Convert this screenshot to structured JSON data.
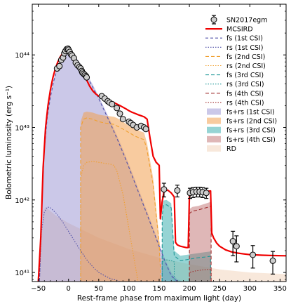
{
  "chart_data": {
    "type": "line",
    "xlabel": "Rest-frame phase from maximum light (day)",
    "ylabel": "Bolometric luminosity (erg s⁻¹)",
    "xlim": [
      -60,
      360
    ],
    "ylim": [
      7.5e+40,
      5e+44
    ],
    "yscale": "log",
    "x_ticks": [
      -50,
      0,
      50,
      100,
      150,
      200,
      250,
      300,
      350
    ],
    "y_ticks": [
      {
        "value": 1e+41,
        "label": "10⁴¹"
      },
      {
        "value": 1e+42,
        "label": "10⁴²"
      },
      {
        "value": 1e+43,
        "label": "10⁴³"
      },
      {
        "value": 1e+44,
        "label": "10⁴⁴"
      }
    ],
    "legend_position": "right",
    "series": [
      {
        "name": "RD",
        "kind": "fill",
        "color": "#f5dcc8",
        "opacity": 0.65,
        "x": [
          -48,
          -45,
          -42,
          -38,
          -30,
          -20,
          0,
          50,
          100,
          150,
          200,
          250,
          300,
          360
        ],
        "y": [
          7.5e+40,
          3.5e+41,
          7e+41,
          8e+41,
          7e+41,
          6e+41,
          4.8e+41,
          3e+41,
          2.1e+41,
          1.6e+41,
          1.3e+41,
          1.1e+41,
          1e+41,
          9.5e+40
        ]
      },
      {
        "name": "fs+rs (1st CSI)",
        "kind": "fill",
        "color": "#8c84cc",
        "opacity": 0.45,
        "x": [
          -48,
          -44,
          -40,
          -35,
          -30,
          -25,
          -20,
          -15,
          -10,
          -5,
          0,
          5,
          10,
          20,
          30,
          40,
          50,
          60,
          70,
          80,
          90,
          100,
          110,
          120,
          130,
          140,
          150,
          160,
          170,
          180,
          190
        ],
        "y": [
          7.5e+40,
          1e+42,
          5.5e+42,
          1.5e+43,
          2.8e+43,
          4.5e+43,
          6.3e+43,
          8e+43,
          9.6e+43,
          1.08e+44,
          1.12e+44,
          1.08e+44,
          9.8e+43,
          7.5e+43,
          5.5e+43,
          3.9e+43,
          2.7e+43,
          1.8e+43,
          1.2e+43,
          7.8e+42,
          5e+42,
          3.1e+42,
          1.9e+42,
          1.15e+42,
          7e+41,
          4.2e+41,
          2.5e+41,
          1.5e+41,
          1e+41,
          8e+40,
          7.5e+40
        ]
      },
      {
        "name": "fs+rs (2nd CSI)",
        "kind": "fill",
        "color": "#f2a050",
        "opacity": 0.55,
        "x": [
          20,
          20,
          25,
          30,
          40,
          50,
          60,
          70,
          75,
          80,
          90,
          100,
          110,
          120,
          125,
          130,
          140,
          150,
          153
        ],
        "y": [
          7.5e+40,
          1.2e+43,
          1.6e+43,
          1.65e+43,
          1.6e+43,
          1.5e+43,
          1.45e+43,
          1.42e+43,
          1.4e+43,
          1.35e+43,
          1.2e+43,
          1.05e+43,
          9.5e+42,
          8.8e+42,
          8.5e+42,
          6e+42,
          2e+42,
          3e+41,
          7.5e+40
        ]
      },
      {
        "name": "fs+rs (3rd CSI)",
        "kind": "fill",
        "color": "#40b0b0",
        "opacity": 0.55,
        "x": [
          155,
          155,
          157,
          162,
          170,
          175,
          185,
          195,
          205,
          215,
          225,
          230,
          235,
          235
        ],
        "y": [
          7.5e+40,
          7e+41,
          9.8e+41,
          1e+42,
          9e+41,
          2e+41,
          1.7e+41,
          1.75e+41,
          1.8e+41,
          1.85e+41,
          1.9e+41,
          1.92e+41,
          1.95e+41,
          7.5e+40
        ]
      },
      {
        "name": "fs+rs (4th CSI)",
        "kind": "fill",
        "color": "#b86060",
        "opacity": 0.45,
        "x": [
          200,
          200,
          205,
          215,
          225,
          232,
          235,
          236,
          236
        ],
        "y": [
          7.5e+40,
          7.5e+41,
          8e+41,
          8.3e+41,
          8.8e+41,
          9.2e+41,
          9.4e+41,
          8e+41,
          7.5e+40
        ]
      },
      {
        "name": "fs (1st CSI)",
        "kind": "line",
        "color": "#5050a8",
        "dash": "4,3",
        "x": [
          -48,
          -44,
          -40,
          -35,
          -30,
          -25,
          -20,
          -15,
          -10,
          -5,
          0,
          5,
          10,
          20,
          30,
          40,
          50,
          60,
          70,
          80,
          90,
          100,
          110,
          120,
          130,
          140,
          150,
          160,
          170,
          180
        ],
        "y": [
          7.5e+40,
          9.5e+41,
          5e+42,
          1.4e+43,
          2.6e+43,
          4.2e+43,
          5.9e+43,
          7.6e+43,
          9.1e+43,
          1.02e+44,
          1.06e+44,
          1.02e+44,
          9.2e+43,
          7e+43,
          5.1e+43,
          3.6e+43,
          2.5e+43,
          1.65e+43,
          1.1e+43,
          7.1e+42,
          4.5e+42,
          2.8e+42,
          1.7e+42,
          1.04e+42,
          6.3e+41,
          3.8e+41,
          2.3e+41,
          1.4e+41,
          9e+40,
          7.5e+40
        ]
      },
      {
        "name": "rs (1st CSI)",
        "kind": "line",
        "color": "#5050a8",
        "dash": "1.5,2",
        "x": [
          -48,
          -45,
          -40,
          -35,
          -30,
          -20,
          -10,
          0,
          10,
          20,
          30,
          40,
          50,
          60,
          70,
          80,
          85
        ],
        "y": [
          7.5e+40,
          3.5e+41,
          6.8e+41,
          8e+41,
          7.8e+41,
          6.5e+41,
          5e+41,
          3.7e+41,
          2.7e+41,
          2e+41,
          1.5e+41,
          1.2e+41,
          1e+41,
          9e+40,
          8.2e+40,
          7.8e+40,
          7.5e+40
        ]
      },
      {
        "name": "fs (2nd CSI)",
        "kind": "line",
        "color": "#f0a030",
        "dash": "5,3",
        "x": [
          20,
          20,
          25,
          30,
          40,
          50,
          60,
          70,
          75,
          80,
          90,
          100,
          110,
          120,
          125,
          130,
          140,
          150,
          153
        ],
        "y": [
          7.5e+40,
          1e+43,
          1.3e+43,
          1.35e+43,
          1.3e+43,
          1.2e+43,
          1.15e+43,
          1.12e+43,
          1.1e+43,
          1.05e+43,
          9.5e+42,
          8.5e+42,
          7.6e+42,
          7e+42,
          6.8e+42,
          4.8e+42,
          1.6e+42,
          2.5e+41,
          7.5e+40
        ]
      },
      {
        "name": "rs (2nd CSI)",
        "kind": "line",
        "color": "#f0a030",
        "dash": "1.5,2",
        "x": [
          20,
          20,
          25,
          30,
          40,
          50,
          60,
          70,
          75,
          80,
          90,
          100,
          110,
          115
        ],
        "y": [
          7.5e+40,
          2e+42,
          3e+42,
          3.3e+42,
          3.4e+42,
          3.3e+42,
          3.2e+42,
          3.1e+42,
          3e+42,
          2.5e+42,
          1.2e+42,
          4e+41,
          1.3e+41,
          7.5e+40
        ]
      },
      {
        "name": "fs (3rd CSI)",
        "kind": "line",
        "color": "#209898",
        "dash": "5,3",
        "x": [
          155,
          155,
          157,
          162,
          170,
          175,
          185,
          195,
          205,
          215,
          225,
          230,
          235,
          235
        ],
        "y": [
          7.5e+40,
          6e+41,
          8.4e+41,
          8.6e+41,
          7.8e+41,
          1.7e+41,
          1.45e+41,
          1.5e+41,
          1.55e+41,
          1.6e+41,
          1.63e+41,
          1.65e+41,
          1.67e+41,
          7.5e+40
        ]
      },
      {
        "name": "rs (3rd CSI)",
        "kind": "line",
        "color": "#209898",
        "dash": "1.5,2",
        "x": [
          155,
          155,
          160,
          170,
          175,
          175
        ],
        "y": [
          7.5e+40,
          1.4e+41,
          1.5e+41,
          1.45e+41,
          1.4e+41,
          7.5e+40
        ]
      },
      {
        "name": "fs (4th CSI)",
        "kind": "line",
        "color": "#a03030",
        "dash": "5,3",
        "x": [
          200,
          200,
          205,
          215,
          225,
          232,
          235,
          236,
          236
        ],
        "y": [
          7.5e+40,
          6.5e+41,
          7e+41,
          7.3e+41,
          7.7e+41,
          8e+41,
          8.2e+41,
          7e+41,
          7.5e+40
        ]
      },
      {
        "name": "rs (4th CSI)",
        "kind": "line",
        "color": "#a03030",
        "dash": "1.5,2",
        "x": [
          200,
          200,
          210,
          220,
          230,
          236,
          236
        ],
        "y": [
          7.5e+40,
          1e+41,
          1.05e+41,
          1.08e+41,
          1.1e+41,
          1.1e+41,
          7.5e+40
        ]
      },
      {
        "name": "MCSIRD",
        "kind": "line",
        "color": "#f00000",
        "width": 2.2,
        "x": [
          -50,
          -46,
          -42,
          -38,
          -34,
          -30,
          -26,
          -22,
          -18,
          -14,
          -10,
          -6,
          -3,
          0,
          3,
          6,
          10,
          15,
          20,
          25,
          30,
          35,
          40,
          45,
          50,
          55,
          60,
          65,
          70,
          75,
          80,
          85,
          90,
          95,
          100,
          105,
          110,
          115,
          120,
          125,
          130,
          135,
          140,
          145,
          150,
          152,
          155,
          158,
          160,
          165,
          170,
          175,
          177,
          180,
          185,
          190,
          195,
          198,
          200,
          203,
          210,
          220,
          230,
          235,
          237,
          240,
          245,
          250,
          260,
          270,
          280,
          290,
          300,
          320,
          340,
          360
        ],
        "y": [
          7.5e+40,
          3e+41,
          2.8e+42,
          1e+43,
          2e+43,
          3.3e+43,
          4.8e+43,
          6.4e+43,
          7.9e+43,
          9.3e+43,
          1.04e+44,
          1.12e+44,
          1.14e+44,
          1.12e+44,
          1.06e+44,
          9.8e+43,
          8.6e+43,
          7.2e+43,
          6.3e+43,
          5.4e+43,
          4.5e+43,
          3.7e+43,
          3.2e+43,
          2.9e+43,
          2.7e+43,
          2.6e+43,
          2.5e+43,
          2.4e+43,
          2.3e+43,
          2.2e+43,
          2.1e+43,
          2e+43,
          1.9e+43,
          1.8e+43,
          1.7e+43,
          1.62e+43,
          1.56e+43,
          1.5e+43,
          1.45e+43,
          1.4e+43,
          1.3e+43,
          7e+42,
          4e+42,
          3.3e+42,
          3e+42,
          5.5e+41,
          9.5e+41,
          1.3e+42,
          1.4e+42,
          1.35e+42,
          1.25e+42,
          1.1e+42,
          2.6e+41,
          2.4e+41,
          2.3e+41,
          2.25e+41,
          2.2e+41,
          2.2e+41,
          1.1e+42,
          1.25e+42,
          1.28e+42,
          1.3e+42,
          1.32e+42,
          1.33e+42,
          3.5e+41,
          3e+41,
          2.55e+41,
          2.3e+41,
          2.05e+41,
          1.92e+41,
          1.85e+41,
          1.8e+41,
          1.76e+41,
          1.73e+41,
          1.71e+41,
          1.7e+41
        ]
      },
      {
        "name": "SN2017egm",
        "kind": "points",
        "color": "#cccccc",
        "x": [
          -19,
          -15,
          -12,
          -9,
          -7,
          -5,
          -3,
          -1,
          0,
          2,
          4,
          6,
          9,
          12,
          15,
          18,
          20,
          22,
          23,
          25,
          27,
          29,
          30,
          55,
          60,
          65,
          68,
          72,
          80,
          85,
          90,
          100,
          103,
          107,
          113,
          120,
          125,
          128,
          158,
          180,
          201,
          206,
          212,
          217,
          222,
          228,
          272,
          278,
          305,
          338
        ],
        "y": [
          6.5e+43,
          7e+43,
          8.5e+43,
          9.2e+43,
          1.05e+44,
          1.13e+44,
          1.2e+44,
          1.22e+44,
          1.18e+44,
          1.1e+44,
          1.02e+44,
          9.8e+43,
          9e+43,
          7.8e+43,
          7.2e+43,
          6.8e+43,
          6.5e+43,
          6e+43,
          5.7e+43,
          5.5e+43,
          5.3e+43,
          5.1e+43,
          4.9e+43,
          2.7e+43,
          2.5e+43,
          2.3e+43,
          2.2e+43,
          2.1e+43,
          1.85e+43,
          1.55e+43,
          1.3e+43,
          1.2e+43,
          1.15e+43,
          1.08e+43,
          1e+43,
          1.05e+43,
          1e+43,
          9.5e+42,
          1.4e+42,
          1.35e+42,
          1.25e+42,
          1.28e+42,
          1.3e+42,
          1.3e+42,
          1.28e+42,
          1.25e+42,
          2.7e+41,
          2.3e+41,
          1.75e+41,
          1.45e+41
        ],
        "err": [
          0,
          0,
          0,
          0,
          0,
          0,
          0,
          0,
          0,
          0,
          0,
          0,
          0,
          0,
          0,
          0,
          0,
          0,
          0,
          0,
          0,
          0,
          0,
          0,
          0,
          0,
          0,
          0,
          0,
          0,
          0,
          0,
          0,
          0,
          0,
          0,
          0,
          0,
          3e+41,
          2.5e+41,
          2e+41,
          2e+41,
          2e+41,
          2e+41,
          2e+41,
          2e+41,
          1e+41,
          9e+40,
          6e+40,
          5e+40
        ]
      }
    ],
    "legend": [
      {
        "label": "SN2017egm",
        "kind": "marker",
        "color": "#cccccc"
      },
      {
        "label": "MCSIRD",
        "kind": "line",
        "color": "#f00000",
        "width": 2.2,
        "dash": ""
      },
      {
        "label": "fs (1st CSI)",
        "kind": "line",
        "color": "#5050a8",
        "dash": "4,3"
      },
      {
        "label": "rs (1st CSI)",
        "kind": "line",
        "color": "#5050a8",
        "dash": "1.5,2"
      },
      {
        "label": "fs (2nd CSI)",
        "kind": "line",
        "color": "#f0a030",
        "dash": "5,3"
      },
      {
        "label": "rs (2nd CSI)",
        "kind": "line",
        "color": "#f0a030",
        "dash": "1.5,2"
      },
      {
        "label": "fs (3rd CSI)",
        "kind": "line",
        "color": "#209898",
        "dash": "5,3"
      },
      {
        "label": "rs (3rd CSI)",
        "kind": "line",
        "color": "#209898",
        "dash": "1.5,2"
      },
      {
        "label": "fs (4th CSI)",
        "kind": "line",
        "color": "#a03030",
        "dash": "5,3"
      },
      {
        "label": "rs (4th CSI)",
        "kind": "line",
        "color": "#a03030",
        "dash": "1.5,2"
      },
      {
        "label": "fs+rs (1st CSI)",
        "kind": "patch",
        "color": "#8c84cc",
        "opacity": 0.45
      },
      {
        "label": "fs+rs (2nd CSI)",
        "kind": "patch",
        "color": "#f2a050",
        "opacity": 0.55
      },
      {
        "label": "fs+rs (3rd CSI)",
        "kind": "patch",
        "color": "#40b0b0",
        "opacity": 0.55
      },
      {
        "label": "fs+rs (4th CSI)",
        "kind": "patch",
        "color": "#b86060",
        "opacity": 0.45
      },
      {
        "label": "RD",
        "kind": "patch",
        "color": "#f5dcc8",
        "opacity": 0.65
      }
    ]
  }
}
